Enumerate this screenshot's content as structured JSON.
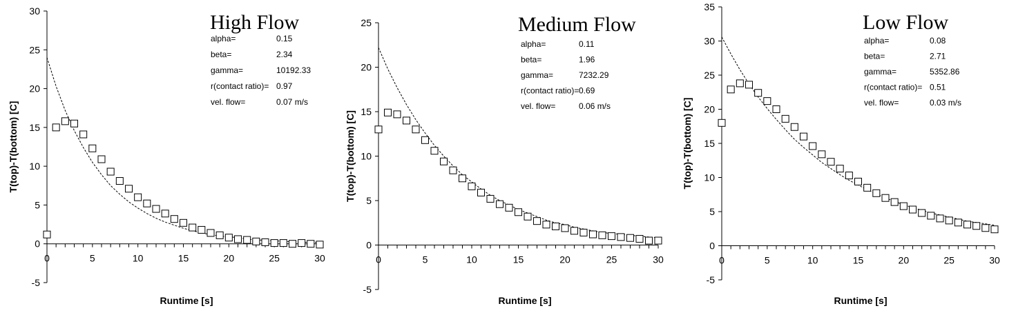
{
  "chart_data": [
    {
      "type": "scatter",
      "title": "High Flow",
      "xlabel": "Runtime [s]",
      "ylabel": "T(top)-T(bottom) [C]",
      "xlim": [
        0,
        30
      ],
      "ylim": [
        -5,
        30
      ],
      "xticks": [
        0,
        5,
        10,
        15,
        20,
        25,
        30
      ],
      "yticks": [
        -5,
        0,
        5,
        10,
        15,
        20,
        25,
        30
      ],
      "parameters": [
        {
          "name": "alpha=",
          "value": "0.15"
        },
        {
          "name": "beta=",
          "value": "2.34"
        },
        {
          "name": "gamma=",
          "value": "10192.33"
        },
        {
          "name": "r(contact ratio)=",
          "value": "0.97"
        },
        {
          "name": "vel. flow=",
          "value": "0.07 m/s"
        }
      ],
      "series": [
        {
          "kind": "scatter",
          "marker": "open-square",
          "x": [
            0,
            1,
            2,
            3,
            4,
            5,
            6,
            7,
            8,
            9,
            10,
            11,
            12,
            13,
            14,
            15,
            16,
            17,
            18,
            19,
            20,
            21,
            22,
            23,
            24,
            25,
            26,
            27,
            28,
            29,
            30
          ],
          "y": [
            1.2,
            15.0,
            15.8,
            15.5,
            14.1,
            12.3,
            10.9,
            9.3,
            8.1,
            7.1,
            6.0,
            5.2,
            4.5,
            3.9,
            3.2,
            2.7,
            2.1,
            1.8,
            1.4,
            1.1,
            0.8,
            0.6,
            0.5,
            0.3,
            0.2,
            0.1,
            0.1,
            0.0,
            0.1,
            0.0,
            -0.1
          ]
        },
        {
          "kind": "line",
          "style": "dashed",
          "x": [
            0,
            1,
            2,
            3,
            4,
            5,
            6,
            7,
            8,
            9,
            10,
            11,
            12,
            13,
            14,
            15,
            16,
            17,
            18,
            19,
            20,
            21,
            22,
            23,
            24,
            25,
            26,
            27,
            28,
            29,
            30
          ],
          "y": [
            24.0,
            20.3,
            17.2,
            14.6,
            12.4,
            10.5,
            8.9,
            7.5,
            6.4,
            5.4,
            4.6,
            3.9,
            3.3,
            2.8,
            2.4,
            2.0,
            1.7,
            1.4,
            1.2,
            1.0,
            0.9,
            0.8,
            0.6,
            0.5,
            0.45,
            0.4,
            0.3,
            0.25,
            0.2,
            0.2,
            0.15
          ]
        }
      ]
    },
    {
      "type": "scatter",
      "title": "Medium Flow",
      "xlabel": "Runtime [s]",
      "ylabel": "T(top)-T(bottom) [C]",
      "xlim": [
        0,
        30
      ],
      "ylim": [
        -5,
        25
      ],
      "xticks": [
        0,
        5,
        10,
        15,
        20,
        25,
        30
      ],
      "yticks": [
        -5,
        0,
        5,
        10,
        15,
        20,
        25
      ],
      "parameters": [
        {
          "name": "alpha=",
          "value": "0.11"
        },
        {
          "name": "beta=",
          "value": "1.96"
        },
        {
          "name": "gamma=",
          "value": "7232.29"
        },
        {
          "name": "r(contact ratio)=",
          "value": "0.69"
        },
        {
          "name": "vel. flow=",
          "value": "0.06 m/s"
        }
      ],
      "series": [
        {
          "kind": "scatter",
          "marker": "open-square",
          "x": [
            0,
            1,
            2,
            3,
            4,
            5,
            6,
            7,
            8,
            9,
            10,
            11,
            12,
            13,
            14,
            15,
            16,
            17,
            18,
            19,
            20,
            21,
            22,
            23,
            24,
            25,
            26,
            27,
            28,
            29,
            30
          ],
          "y": [
            13.0,
            14.9,
            14.7,
            14.0,
            13.0,
            11.8,
            10.6,
            9.4,
            8.4,
            7.5,
            6.6,
            5.9,
            5.2,
            4.6,
            4.2,
            3.7,
            3.2,
            2.7,
            2.3,
            2.1,
            1.9,
            1.6,
            1.4,
            1.2,
            1.1,
            1.0,
            0.9,
            0.8,
            0.7,
            0.5,
            0.5
          ]
        },
        {
          "kind": "line",
          "style": "dashed",
          "x": [
            0,
            1,
            2,
            3,
            4,
            5,
            6,
            7,
            8,
            9,
            10,
            11,
            12,
            13,
            14,
            15,
            16,
            17,
            18,
            19,
            20,
            21,
            22,
            23,
            24,
            25,
            26,
            27,
            28,
            29,
            30
          ],
          "y": [
            22.2,
            19.8,
            17.7,
            15.8,
            14.1,
            12.6,
            11.2,
            10.0,
            8.9,
            7.9,
            7.1,
            6.3,
            5.6,
            5.0,
            4.5,
            4.0,
            3.6,
            3.2,
            2.8,
            2.5,
            2.3,
            2.0,
            1.8,
            1.6,
            1.4,
            1.3,
            1.2,
            1.1,
            1.0,
            0.9,
            0.8
          ]
        }
      ]
    },
    {
      "type": "scatter",
      "title": "Low Flow",
      "xlabel": "Runtime [s]",
      "ylabel": "T(top)-T(bottom) [C]",
      "xlim": [
        0,
        30
      ],
      "ylim": [
        -5,
        35
      ],
      "xticks": [
        0,
        5,
        10,
        15,
        20,
        25,
        30
      ],
      "yticks": [
        -5,
        0,
        5,
        10,
        15,
        20,
        25,
        30,
        35
      ],
      "parameters": [
        {
          "name": "alpha=",
          "value": "0.08"
        },
        {
          "name": "beta=",
          "value": "2.71"
        },
        {
          "name": "gamma=",
          "value": "5352.86"
        },
        {
          "name": "r(contact ratio)=",
          "value": "0.51"
        },
        {
          "name": "vel. flow=",
          "value": "0.03 m/s"
        }
      ],
      "series": [
        {
          "kind": "scatter",
          "marker": "open-square",
          "x": [
            0,
            1,
            2,
            3,
            4,
            5,
            6,
            7,
            8,
            9,
            10,
            11,
            12,
            13,
            14,
            15,
            16,
            17,
            18,
            19,
            20,
            21,
            22,
            23,
            24,
            25,
            26,
            27,
            28,
            29,
            30
          ],
          "y": [
            18.0,
            22.9,
            23.8,
            23.6,
            22.4,
            21.2,
            20.0,
            18.6,
            17.4,
            16.0,
            14.6,
            13.4,
            12.3,
            11.3,
            10.3,
            9.4,
            8.5,
            7.7,
            7.0,
            6.4,
            5.8,
            5.3,
            4.8,
            4.4,
            4.0,
            3.7,
            3.4,
            3.1,
            2.9,
            2.6,
            2.4
          ]
        },
        {
          "kind": "line",
          "style": "dashed",
          "x": [
            0,
            1,
            2,
            3,
            4,
            5,
            6,
            7,
            8,
            9,
            10,
            11,
            12,
            13,
            14,
            15,
            16,
            17,
            18,
            19,
            20,
            21,
            22,
            23,
            24,
            25,
            26,
            27,
            28,
            29,
            30
          ],
          "y": [
            30.6,
            28.1,
            25.8,
            23.7,
            21.8,
            20.1,
            18.5,
            17.0,
            15.6,
            14.4,
            13.3,
            12.2,
            11.3,
            10.4,
            9.6,
            8.9,
            8.2,
            7.6,
            7.0,
            6.5,
            6.0,
            5.6,
            5.2,
            4.8,
            4.5,
            4.2,
            3.9,
            3.6,
            3.4,
            3.2,
            3.0
          ]
        }
      ]
    }
  ]
}
